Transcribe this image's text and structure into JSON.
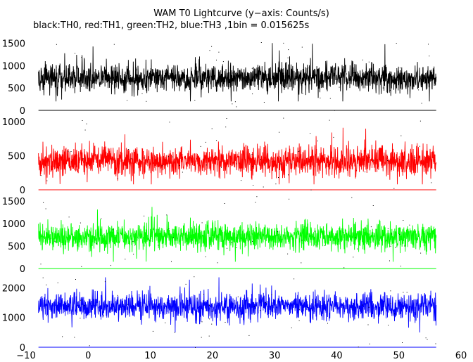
{
  "chart_data": {
    "type": "line",
    "title": "WAM T0 Lightcurve (y−axis: Counts/s)",
    "subtitle": "black:TH0, red:TH1, green:TH2, blue:TH3 ,1bin = 0.015625s",
    "x_axis": {
      "range": [
        -10,
        60
      ],
      "ticks": [
        -10,
        0,
        10,
        20,
        30,
        40,
        50,
        60
      ],
      "tick_labels": [
        "−10",
        "0",
        "10",
        "20",
        "30",
        "40",
        "50",
        "60"
      ],
      "data_range": [
        -8,
        56
      ]
    },
    "bin_size_s": 0.015625,
    "grid": false,
    "panels": [
      {
        "name": "TH0",
        "color": "#000000",
        "ylim": [
          0,
          1650
        ],
        "yticks": [
          0,
          500,
          1000,
          1500
        ],
        "ytick_labels": [
          "0",
          "500",
          "1000",
          "1500"
        ],
        "mean": 720,
        "spread": 160,
        "min": 200,
        "max": 1550
      },
      {
        "name": "TH1",
        "color": "#ff0000",
        "ylim": [
          0,
          1080
        ],
        "yticks": [
          0,
          500,
          1000
        ],
        "ytick_labels": [
          "0",
          "500",
          "1000"
        ],
        "mean": 420,
        "spread": 110,
        "min": 80,
        "max": 1000
      },
      {
        "name": "TH2",
        "color": "#00ff00",
        "ylim": [
          0,
          1640
        ],
        "yticks": [
          0,
          500,
          1000,
          1500
        ],
        "ytick_labels": [
          "0",
          "500",
          "1000",
          "1500"
        ],
        "mean": 710,
        "spread": 150,
        "min": 150,
        "max": 1500
      },
      {
        "name": "TH3",
        "color": "#0000ff",
        "ylim": [
          0,
          2480
        ],
        "yticks": [
          0,
          1000,
          2000
        ],
        "ytick_labels": [
          "0",
          "1000",
          "2000"
        ],
        "mean": 1380,
        "spread": 220,
        "min": 500,
        "max": 2350
      }
    ]
  }
}
